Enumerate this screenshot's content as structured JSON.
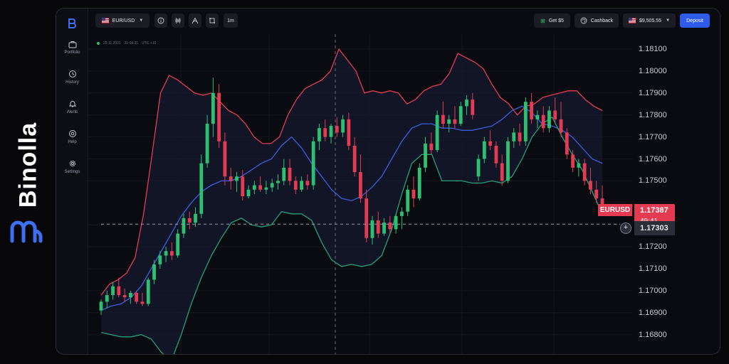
{
  "brand": {
    "name": "Binolla"
  },
  "sidebar": {
    "items": [
      {
        "label": "Portfolio",
        "icon": "briefcase-icon"
      },
      {
        "label": "History",
        "icon": "history-icon"
      },
      {
        "label": "Alerts",
        "icon": "bell-icon"
      },
      {
        "label": "Help",
        "icon": "help-icon"
      },
      {
        "label": "Settings",
        "icon": "gear-icon"
      }
    ]
  },
  "toolbar": {
    "asset": "EUR/USD",
    "timeframe": "1m",
    "get_bonus": "Get $5",
    "cashback": "Cashback",
    "balance": "$9,505.55",
    "deposit": "Deposit"
  },
  "chart_meta": {
    "date": "25.11.2021",
    "time": "21:04:31",
    "tz": "UTC +10"
  },
  "chart_data": {
    "type": "candlestick",
    "symbol": "EURUSD",
    "y_ticks": [
      "1.18100",
      "1.18000",
      "1.17900",
      "1.17800",
      "1.17700",
      "1.17600",
      "1.17500",
      "1.17300",
      "1.17200",
      "1.17100",
      "1.17000",
      "1.16900",
      "1.16800"
    ],
    "ylim": [
      1.167,
      1.1815
    ],
    "current_price": "1.17387",
    "countdown": "49:41",
    "crosshair_price": "1.17303",
    "indicator": "Bollinger Bands",
    "colors": {
      "up": "#2fbf71",
      "down": "#e33c52",
      "upper_band": "#e33c52",
      "middle_band": "#3b5fe0",
      "lower_band": "#25a07a"
    },
    "candles": [
      [
        1.1691,
        1.1696,
        1.1689,
        1.1695
      ],
      [
        1.1695,
        1.17,
        1.1692,
        1.1698
      ],
      [
        1.1698,
        1.1704,
        1.1696,
        1.1702
      ],
      [
        1.1702,
        1.1706,
        1.1697,
        1.1698
      ],
      [
        1.1698,
        1.1701,
        1.1695,
        1.1697
      ],
      [
        1.1697,
        1.17,
        1.1694,
        1.1699
      ],
      [
        1.1699,
        1.17,
        1.1694,
        1.1695
      ],
      [
        1.1695,
        1.1699,
        1.1693,
        1.1694
      ],
      [
        1.1694,
        1.1706,
        1.1693,
        1.1705
      ],
      [
        1.1705,
        1.1714,
        1.1703,
        1.1712
      ],
      [
        1.1712,
        1.1718,
        1.171,
        1.1716
      ],
      [
        1.1716,
        1.172,
        1.1713,
        1.1718
      ],
      [
        1.1718,
        1.1722,
        1.1714,
        1.1716
      ],
      [
        1.1716,
        1.1728,
        1.1715,
        1.1726
      ],
      [
        1.1726,
        1.1735,
        1.1724,
        1.1733
      ],
      [
        1.1733,
        1.1736,
        1.1728,
        1.1731
      ],
      [
        1.1731,
        1.1738,
        1.1729,
        1.1735
      ],
      [
        1.1735,
        1.1762,
        1.1733,
        1.1758
      ],
      [
        1.1758,
        1.178,
        1.1756,
        1.1776
      ],
      [
        1.1776,
        1.1797,
        1.177,
        1.179
      ],
      [
        1.179,
        1.1794,
        1.1765,
        1.1768
      ],
      [
        1.1768,
        1.1772,
        1.1748,
        1.1752
      ],
      [
        1.1752,
        1.1756,
        1.1746,
        1.175
      ],
      [
        1.175,
        1.1754,
        1.1745,
        1.1752
      ],
      [
        1.1752,
        1.1755,
        1.1741,
        1.1743
      ],
      [
        1.1743,
        1.1748,
        1.1742,
        1.1746
      ],
      [
        1.1746,
        1.175,
        1.1744,
        1.1748
      ],
      [
        1.1748,
        1.1752,
        1.1745,
        1.1746
      ],
      [
        1.1746,
        1.175,
        1.1744,
        1.1747
      ],
      [
        1.1747,
        1.1751,
        1.1745,
        1.1749
      ],
      [
        1.1749,
        1.1753,
        1.1746,
        1.175
      ],
      [
        1.175,
        1.176,
        1.1748,
        1.1756
      ],
      [
        1.1756,
        1.176,
        1.1748,
        1.175
      ],
      [
        1.175,
        1.1752,
        1.1744,
        1.1746
      ],
      [
        1.1746,
        1.1752,
        1.1745,
        1.175
      ],
      [
        1.175,
        1.1753,
        1.1746,
        1.1748
      ],
      [
        1.1748,
        1.177,
        1.1746,
        1.1768
      ],
      [
        1.1768,
        1.1776,
        1.1764,
        1.1774
      ],
      [
        1.1774,
        1.1778,
        1.1768,
        1.177
      ],
      [
        1.177,
        1.1776,
        1.1767,
        1.1775
      ],
      [
        1.1775,
        1.1779,
        1.177,
        1.1772
      ],
      [
        1.1772,
        1.178,
        1.177,
        1.1778
      ],
      [
        1.1778,
        1.1781,
        1.1764,
        1.1766
      ],
      [
        1.1766,
        1.177,
        1.1752,
        1.1754
      ],
      [
        1.1754,
        1.1762,
        1.174,
        1.1742
      ],
      [
        1.1742,
        1.1746,
        1.1722,
        1.1724
      ],
      [
        1.1724,
        1.1734,
        1.1721,
        1.1732
      ],
      [
        1.1732,
        1.1736,
        1.1724,
        1.1726
      ],
      [
        1.1726,
        1.1733,
        1.1725,
        1.1731
      ],
      [
        1.1731,
        1.1734,
        1.1726,
        1.1728
      ],
      [
        1.1728,
        1.1735,
        1.1726,
        1.1734
      ],
      [
        1.1734,
        1.1738,
        1.1728,
        1.1736
      ],
      [
        1.1736,
        1.1748,
        1.1734,
        1.1746
      ],
      [
        1.1746,
        1.1752,
        1.1738,
        1.1742
      ],
      [
        1.1742,
        1.1758,
        1.1741,
        1.1756
      ],
      [
        1.1756,
        1.177,
        1.1754,
        1.1767
      ],
      [
        1.1767,
        1.1772,
        1.1762,
        1.1764
      ],
      [
        1.1764,
        1.1782,
        1.1763,
        1.178
      ],
      [
        1.178,
        1.1786,
        1.1774,
        1.1776
      ],
      [
        1.1776,
        1.178,
        1.1772,
        1.1778
      ],
      [
        1.1778,
        1.1784,
        1.1774,
        1.1776
      ],
      [
        1.1776,
        1.1786,
        1.1775,
        1.1784
      ],
      [
        1.1784,
        1.1789,
        1.178,
        1.1787
      ],
      [
        1.1787,
        1.179,
        1.1778,
        1.178
      ],
      [
        1.1752,
        1.1762,
        1.175,
        1.176
      ],
      [
        1.176,
        1.177,
        1.1758,
        1.1768
      ],
      [
        1.1768,
        1.1773,
        1.1764,
        1.1766
      ],
      [
        1.1766,
        1.1768,
        1.1756,
        1.1758
      ],
      [
        1.1758,
        1.1762,
        1.1748,
        1.175
      ],
      [
        1.175,
        1.177,
        1.1749,
        1.1768
      ],
      [
        1.1768,
        1.1774,
        1.1765,
        1.1772
      ],
      [
        1.1772,
        1.1776,
        1.1766,
        1.1768
      ],
      [
        1.1768,
        1.1788,
        1.1766,
        1.1786
      ],
      [
        1.1786,
        1.179,
        1.1776,
        1.1778
      ],
      [
        1.1778,
        1.1782,
        1.1774,
        1.178
      ],
      [
        1.178,
        1.1784,
        1.1772,
        1.1774
      ],
      [
        1.1774,
        1.1784,
        1.1772,
        1.1782
      ],
      [
        1.1782,
        1.1788,
        1.1776,
        1.1778
      ],
      [
        1.1778,
        1.1786,
        1.177,
        1.1772
      ],
      [
        1.1772,
        1.1774,
        1.176,
        1.1762
      ],
      [
        1.1762,
        1.1764,
        1.1754,
        1.1756
      ],
      [
        1.1756,
        1.176,
        1.1752,
        1.1758
      ],
      [
        1.1758,
        1.176,
        1.1748,
        1.175
      ],
      [
        1.175,
        1.1756,
        1.1744,
        1.1746
      ],
      [
        1.1746,
        1.175,
        1.174,
        1.1742
      ],
      [
        1.1742,
        1.1748,
        1.1738,
        1.1739
      ]
    ],
    "upper_band": [
      1.1698,
      1.1703,
      1.1705,
      1.1708,
      1.1715,
      1.1735,
      1.1762,
      1.179,
      1.1798,
      1.1796,
      1.1793,
      1.179,
      1.1789,
      1.179,
      1.1786,
      1.1782,
      1.178,
      1.1776,
      1.177,
      1.1767,
      1.1767,
      1.177,
      1.178,
      1.1787,
      1.1792,
      1.1794,
      1.1796,
      1.18,
      1.181,
      1.1805,
      1.18,
      1.179,
      1.1791,
      1.179,
      1.1791,
      1.179,
      1.1785,
      1.1787,
      1.1791,
      1.1793,
      1.1794,
      1.1799,
      1.1808,
      1.1806,
      1.1804,
      1.1801,
      1.1794,
      1.1788,
      1.1785,
      1.178,
      1.1784,
      1.1785,
      1.1788,
      1.1789,
      1.179,
      1.1791,
      1.1791,
      1.1787,
      1.1784,
      1.1782
    ],
    "middle_band": [
      1.1691,
      1.1693,
      1.1694,
      1.1697,
      1.1702,
      1.171,
      1.1718,
      1.1726,
      1.1734,
      1.174,
      1.1745,
      1.1748,
      1.175,
      1.175,
      1.1752,
      1.1755,
      1.1758,
      1.176,
      1.1766,
      1.177,
      1.1765,
      1.1758,
      1.1752,
      1.1746,
      1.1742,
      1.1741,
      1.1743,
      1.1747,
      1.1752,
      1.176,
      1.1768,
      1.1774,
      1.1776,
      1.1776,
      1.1774,
      1.1774,
      1.1773,
      1.1773,
      1.1774,
      1.1775,
      1.1778,
      1.1782,
      1.1784,
      1.1781,
      1.1776,
      1.1775,
      1.1773,
      1.177,
      1.1765,
      1.176,
      1.1758
    ],
    "lower_band": [
      1.1681,
      1.168,
      1.1679,
      1.1679,
      1.168,
      1.1678,
      1.1672,
      1.1668,
      1.168,
      1.1694,
      1.1706,
      1.1716,
      1.1724,
      1.1731,
      1.1733,
      1.173,
      1.1729,
      1.173,
      1.1736,
      1.1735,
      1.1735,
      1.1732,
      1.1722,
      1.1714,
      1.1711,
      1.1712,
      1.1711,
      1.1712,
      1.1716,
      1.1728,
      1.1744,
      1.1758,
      1.1762,
      1.1762,
      1.175,
      1.175,
      1.175,
      1.1749,
      1.1749,
      1.175,
      1.1749,
      1.1752,
      1.176,
      1.177,
      1.1776,
      1.1779,
      1.177,
      1.1762,
      1.1755,
      1.1745,
      1.1735
    ]
  }
}
